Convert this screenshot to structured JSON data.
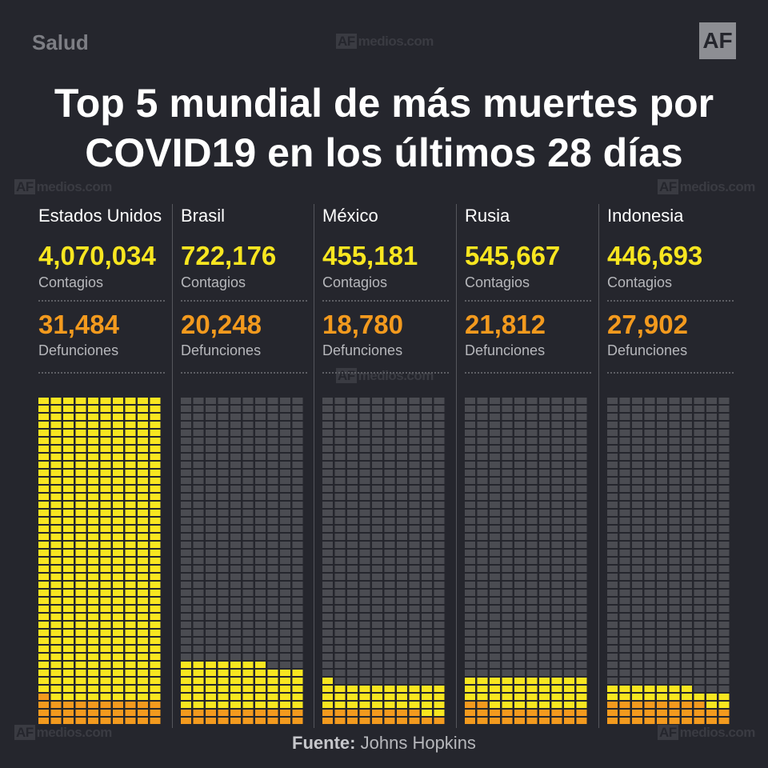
{
  "header": {
    "section": "Salud",
    "logo": "AF",
    "watermark_brand": "AF",
    "watermark_text": "medios.com"
  },
  "title_line1": "Top 5 mundial de más muertes por",
  "title_line2": "COVID19 en los últimos 28 días",
  "labels": {
    "cases": "Contagios",
    "deaths": "Defunciones"
  },
  "source": {
    "label": "Fuente:",
    "value": "Johns Hopkins"
  },
  "colors": {
    "cases": "#f8e620",
    "deaths": "#f39a1e",
    "empty": "#4b4c52",
    "background": "#25262d"
  },
  "chart_data": {
    "type": "waffle",
    "grid": {
      "columns": 10,
      "rows": 41
    },
    "categories": [
      "Estados Unidos",
      "Brasil",
      "México",
      "Rusia",
      "Indonesia"
    ],
    "series": [
      {
        "name": "Contagios",
        "display": [
          "4,070,034",
          "722,176",
          "455,181",
          "545,667",
          "446,693"
        ],
        "values": [
          4070034,
          722176,
          455181,
          545667,
          446693
        ]
      },
      {
        "name": "Defunciones",
        "display": [
          "31,484",
          "20,248",
          "18,780",
          "21,812",
          "27,902"
        ],
        "values": [
          31484,
          20248,
          18780,
          21812,
          27902
        ]
      }
    ],
    "filled_cells": {
      "yellow": [
        410,
        77,
        51,
        60,
        47
      ],
      "orange": [
        31,
        20,
        18,
        22,
        28
      ]
    }
  }
}
